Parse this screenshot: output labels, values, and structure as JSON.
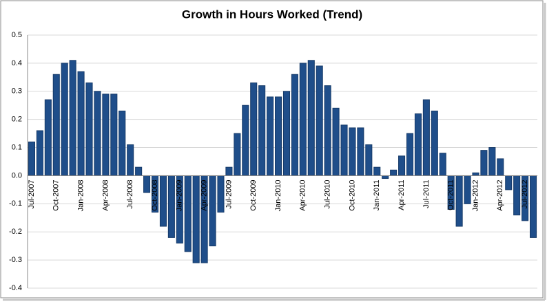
{
  "chart_data": {
    "type": "bar",
    "title": "Growth in Hours Worked (Trend)",
    "categories": [
      "Jul-2007",
      null,
      null,
      "Oct-2007",
      null,
      null,
      "Jan-2008",
      null,
      null,
      "Apr-2008",
      null,
      null,
      "Jul-2008",
      null,
      null,
      "Oct-2008",
      null,
      null,
      "Jan-2009",
      null,
      null,
      "Apr-2009",
      null,
      null,
      "Jul-2009",
      null,
      null,
      "Oct-2009",
      null,
      null,
      "Jan-2010",
      null,
      null,
      "Apr-2010",
      null,
      null,
      "Jul-2010",
      null,
      null,
      "Oct-2010",
      null,
      null,
      "Jan-2011",
      null,
      null,
      "Apr-2011",
      null,
      null,
      "Jul-2011",
      null,
      null,
      "Oct-2011",
      null,
      null,
      "Jan-2012",
      null,
      null,
      "Apr-2012",
      null,
      null,
      "Jul-2012",
      null
    ],
    "values": [
      0.12,
      0.16,
      0.27,
      0.36,
      0.4,
      0.41,
      0.37,
      0.33,
      0.3,
      0.29,
      0.29,
      0.23,
      0.11,
      0.03,
      -0.06,
      -0.13,
      -0.18,
      -0.22,
      -0.24,
      -0.27,
      -0.31,
      -0.31,
      -0.25,
      -0.13,
      0.03,
      0.15,
      0.25,
      0.33,
      0.32,
      0.28,
      0.28,
      0.3,
      0.36,
      0.4,
      0.41,
      0.39,
      0.32,
      0.24,
      0.18,
      0.17,
      0.17,
      0.11,
      0.03,
      -0.01,
      0.02,
      0.07,
      0.15,
      0.22,
      0.27,
      0.23,
      0.08,
      -0.12,
      -0.18,
      -0.1,
      0.01,
      0.09,
      0.1,
      0.06,
      -0.05,
      -0.14,
      -0.16,
      -0.22
    ],
    "color": "#1f4e8a",
    "ylim": [
      -0.4,
      0.5
    ],
    "yticks": [
      -0.4,
      -0.3,
      -0.2,
      -0.1,
      {
        "value": 0,
        "label": "0.0"
      },
      0.1,
      0.2,
      0.3,
      0.4,
      0.5
    ],
    "grid": true
  }
}
